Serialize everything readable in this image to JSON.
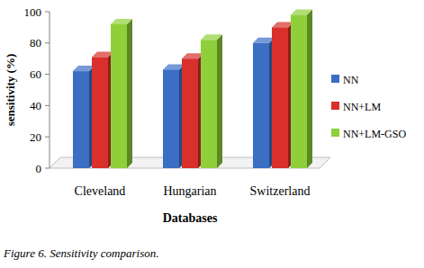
{
  "chart_data": {
    "type": "bar",
    "title": "Figure 6. Sensitivity comparison.",
    "x_label": "Databases",
    "y_label": "sensitivity (%)",
    "categories": [
      "Cleveland",
      "Hungarian",
      "Switzerland"
    ],
    "series": [
      {
        "name": "NN",
        "color": "#3a6fc4",
        "values": [
          62,
          63,
          80
        ]
      },
      {
        "name": "NN+LM",
        "color": "#d9302c",
        "values": [
          71,
          70,
          90
        ]
      },
      {
        "name": "NN+LM-GSO",
        "color": "#8fd03a",
        "values": [
          92,
          82,
          98
        ]
      }
    ],
    "ylim": [
      0,
      100
    ],
    "yticks": [
      0,
      20,
      40,
      60,
      80,
      100
    ],
    "grid": false,
    "legend": "right"
  }
}
